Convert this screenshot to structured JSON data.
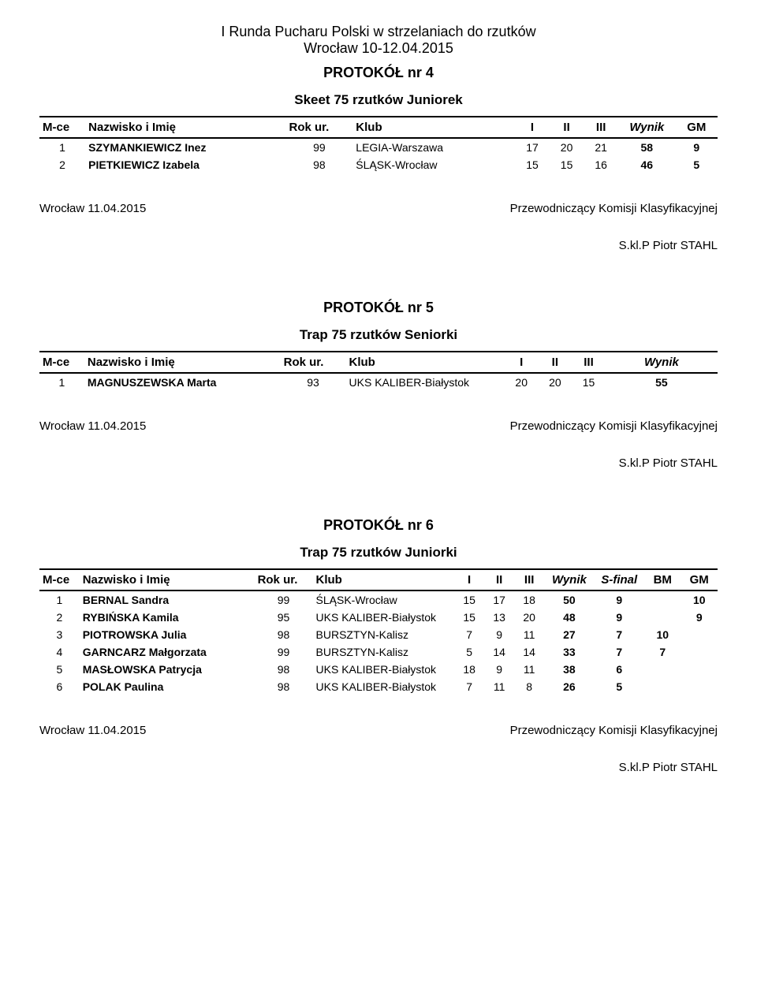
{
  "header": {
    "title": "I Runda Pucharu Polski w strzelaniach do rzutków",
    "subtitle": "Wrocław 10-12.04.2015"
  },
  "columns": {
    "mce": "M-ce",
    "name": "Nazwisko i Imię",
    "rok": "Rok ur.",
    "klub": "Klub",
    "r1": "I",
    "r2": "II",
    "r3": "III",
    "wynik": "Wynik",
    "sfinal": "S-final",
    "bm": "BM",
    "gm": "GM"
  },
  "footer": {
    "place_date": "Wrocław 11.04.2015",
    "chair": "Przewodniczący Komisji Klasyfikacyjnej",
    "signer": "S.kl.P Piotr STAHL"
  },
  "sections": {
    "p4": {
      "protokol": "PROTOKÓŁ nr 4",
      "event": "Skeet 75 rzutków Juniorek",
      "layout": "with_gm",
      "rows": [
        {
          "mce": "1",
          "name": "SZYMANKIEWICZ Inez",
          "rok": "99",
          "klub": "LEGIA-Warszawa",
          "r1": "17",
          "r2": "20",
          "r3": "21",
          "wynik": "58",
          "gm": "9"
        },
        {
          "mce": "2",
          "name": "PIETKIEWICZ Izabela",
          "rok": "98",
          "klub": "ŚLĄSK-Wrocław",
          "r1": "15",
          "r2": "15",
          "r3": "16",
          "wynik": "46",
          "gm": "5"
        }
      ]
    },
    "p5": {
      "protokol": "PROTOKÓŁ nr 5",
      "event": "Trap 75 rzutków Seniorki",
      "layout": "basic",
      "rows": [
        {
          "mce": "1",
          "name": "MAGNUSZEWSKA Marta",
          "rok": "93",
          "klub": "UKS KALIBER-Białystok",
          "r1": "20",
          "r2": "20",
          "r3": "15",
          "wynik": "55"
        }
      ]
    },
    "p6": {
      "protokol": "PROTOKÓŁ nr 6",
      "event": "Trap 75 rzutków Juniorki",
      "layout": "full",
      "rows": [
        {
          "mce": "1",
          "name": "BERNAL Sandra",
          "rok": "99",
          "klub": "ŚLĄSK-Wrocław",
          "r1": "15",
          "r2": "17",
          "r3": "18",
          "wynik": "50",
          "sfinal": "9",
          "bm": "",
          "gm": "10"
        },
        {
          "mce": "2",
          "name": "RYBIŃSKA Kamila",
          "rok": "95",
          "klub": "UKS KALIBER-Białystok",
          "r1": "15",
          "r2": "13",
          "r3": "20",
          "wynik": "48",
          "sfinal": "9",
          "bm": "",
          "gm": "9"
        },
        {
          "mce": "3",
          "name": "PIOTROWSKA Julia",
          "rok": "98",
          "klub": "BURSZTYN-Kalisz",
          "r1": "7",
          "r2": "9",
          "r3": "11",
          "wynik": "27",
          "sfinal": "7",
          "bm": "10",
          "gm": ""
        },
        {
          "mce": "4",
          "name": "GARNCARZ Małgorzata",
          "rok": "99",
          "klub": "BURSZTYN-Kalisz",
          "r1": "5",
          "r2": "14",
          "r3": "14",
          "wynik": "33",
          "sfinal": "7",
          "bm": "7",
          "gm": ""
        },
        {
          "mce": "5",
          "name": "MASŁOWSKA Patrycja",
          "rok": "98",
          "klub": "UKS KALIBER-Białystok",
          "r1": "18",
          "r2": "9",
          "r3": "11",
          "wynik": "38",
          "sfinal": "6",
          "bm": "",
          "gm": ""
        },
        {
          "mce": "6",
          "name": "POLAK Paulina",
          "rok": "98",
          "klub": "UKS KALIBER-Białystok",
          "r1": "7",
          "r2": "11",
          "r3": "8",
          "wynik": "26",
          "sfinal": "5",
          "bm": "",
          "gm": ""
        }
      ]
    }
  }
}
